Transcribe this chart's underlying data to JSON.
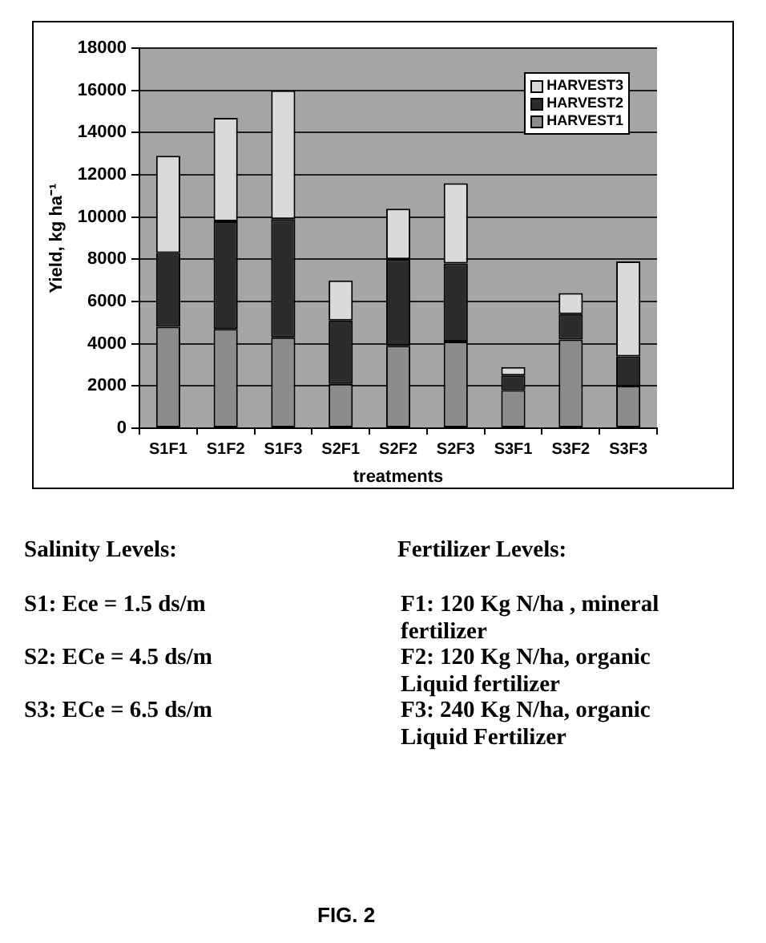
{
  "chart_data": {
    "type": "bar",
    "xlabel": "treatments",
    "ylabel": "Yield, kg ha⁻¹",
    "categories": [
      "S1F1",
      "S1F2",
      "S1F3",
      "S2F1",
      "S2F2",
      "S2F3",
      "S3F1",
      "S3F2",
      "S3F3"
    ],
    "series": [
      {
        "name": "HARVEST1",
        "color": "#8c8c8c",
        "values": [
          4800,
          4700,
          4300,
          2100,
          3900,
          4100,
          1800,
          4200,
          2000
        ]
      },
      {
        "name": "HARVEST2",
        "color": "#2b2b2b",
        "values": [
          3500,
          5100,
          5600,
          3000,
          4100,
          3700,
          700,
          1200,
          1400
        ]
      },
      {
        "name": "HARVEST3",
        "color": "#dadada",
        "values": [
          4600,
          4900,
          6100,
          1900,
          2400,
          3800,
          400,
          1000,
          4500
        ]
      }
    ],
    "stacked": true,
    "ylim": [
      0,
      18000
    ],
    "yticks": [
      0,
      2000,
      4000,
      6000,
      8000,
      10000,
      12000,
      14000,
      16000,
      18000
    ],
    "grid": "y",
    "legend": "top right",
    "annotations": [
      "Salinity Levels:",
      "S1: Ece = 1.5 ds/m",
      "S2: ECe = 4.5 ds/m",
      "S3: ECe = 6.5 ds/m",
      "Fertilizer Levels:",
      "F1: 120 Kg N/ha , mineral fertilizer",
      "F2: 120 Kg N/ha, organic Liquid fertilizer",
      "F3: 240 Kg N/ha, organic Liquid Fertilizer",
      "FIG. 2"
    ]
  }
}
